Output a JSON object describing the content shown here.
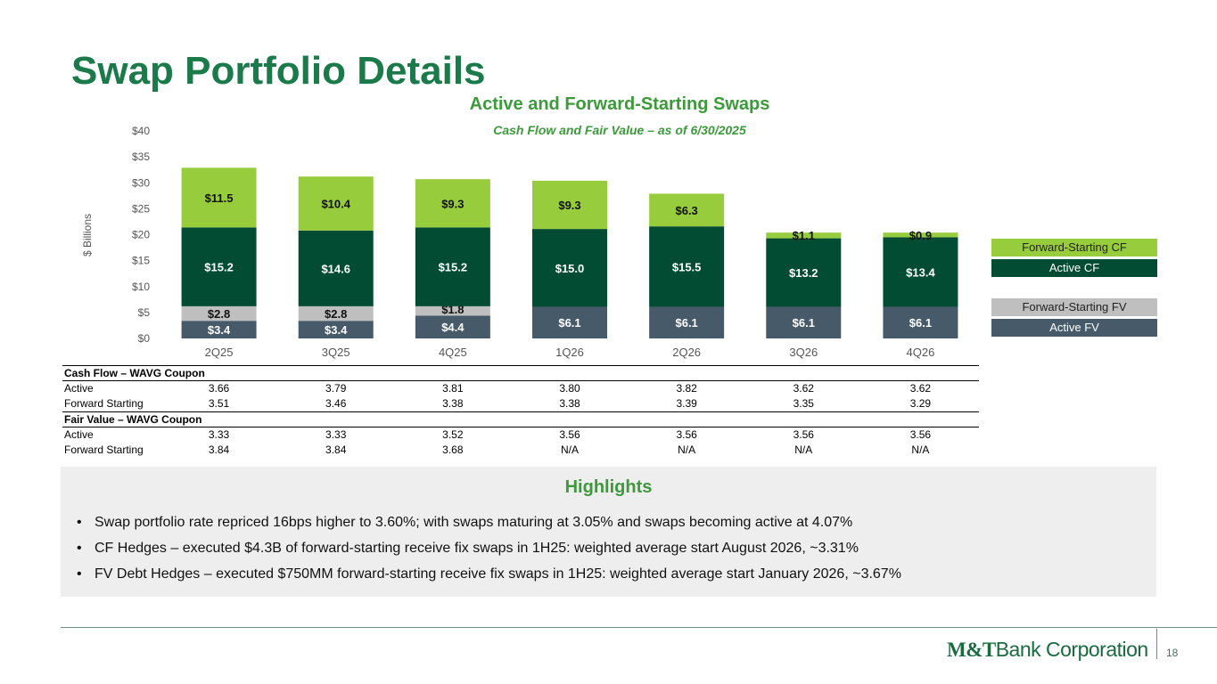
{
  "page": {
    "title": "Swap Portfolio Details",
    "page_number": "18"
  },
  "chart_data": {
    "type": "bar",
    "stacked": true,
    "title": "Active and Forward-Starting Swaps",
    "subtitle": "Cash Flow and Fair Value – as of 6/30/2025",
    "ylabel": "$ Billions",
    "xlabel": "",
    "ylim": [
      0,
      40
    ],
    "yticks": [
      0,
      5,
      10,
      15,
      20,
      25,
      30,
      35,
      40
    ],
    "ytick_labels": [
      "$0",
      "$5",
      "$10",
      "$15",
      "$20",
      "$25",
      "$30",
      "$35",
      "$40"
    ],
    "categories": [
      "2Q25",
      "3Q25",
      "4Q25",
      "1Q26",
      "2Q26",
      "3Q26",
      "4Q26"
    ],
    "series": [
      {
        "name": "Active FV",
        "color": "#475a6a",
        "label_color": "#ffffff",
        "values": [
          3.4,
          3.4,
          4.4,
          6.1,
          6.1,
          6.1,
          6.1
        ],
        "labels": [
          "$3.4",
          "$3.4",
          "$4.4",
          "$6.1",
          "$6.1",
          "$6.1",
          "$6.1"
        ]
      },
      {
        "name": "Forward-Starting FV",
        "color": "#bfbfbf",
        "label_color": "#111111",
        "values": [
          2.8,
          2.8,
          1.8,
          0,
          0,
          0,
          0
        ],
        "labels": [
          "$2.8",
          "$2.8",
          "$1.8",
          "",
          "",
          "",
          ""
        ]
      },
      {
        "name": "Active CF",
        "color": "#034c34",
        "label_color": "#ffffff",
        "values": [
          15.2,
          14.6,
          15.2,
          15.0,
          15.5,
          13.2,
          13.4
        ],
        "labels": [
          "$15.2",
          "$14.6",
          "$15.2",
          "$15.0",
          "$15.5",
          "$13.2",
          "$13.4"
        ]
      },
      {
        "name": "Forward-Starting CF",
        "color": "#97cc3c",
        "label_color": "#111111",
        "values": [
          11.5,
          10.4,
          9.3,
          9.3,
          6.3,
          1.1,
          0.9
        ],
        "labels": [
          "$11.5",
          "$10.4",
          "$9.3",
          "$9.3",
          "$6.3",
          "$1.1",
          "$0.9"
        ]
      }
    ],
    "legend": [
      {
        "name": "Forward-Starting CF",
        "color": "#97cc3c",
        "text_color": "#222222"
      },
      {
        "name": "Active CF",
        "color": "#034c34",
        "text_color": "#ffffff"
      },
      {
        "name": "Forward-Starting FV",
        "color": "#bfbfbf",
        "text_color": "#222222"
      },
      {
        "name": "Active FV",
        "color": "#475a6a",
        "text_color": "#ffffff"
      }
    ],
    "legend_position": "right"
  },
  "coupon_table": {
    "sections": [
      {
        "header": "Cash  Flow – WAVG Coupon",
        "rows": [
          {
            "label": "Active",
            "values": [
              "3.66",
              "3.79",
              "3.81",
              "3.80",
              "3.82",
              "3.62",
              "3.62"
            ]
          },
          {
            "label": "Forward Starting",
            "values": [
              "3.51",
              "3.46",
              "3.38",
              "3.38",
              "3.39",
              "3.35",
              "3.29"
            ]
          }
        ]
      },
      {
        "header": "Fair Value – WAVG Coupon",
        "rows": [
          {
            "label": "Active",
            "values": [
              "3.33",
              "3.33",
              "3.52",
              "3.56",
              "3.56",
              "3.56",
              "3.56"
            ]
          },
          {
            "label": "Forward Starting",
            "values": [
              "3.84",
              "3.84",
              "3.68",
              "N/A",
              "N/A",
              "N/A",
              "N/A"
            ]
          }
        ]
      }
    ]
  },
  "highlights": {
    "title": "Highlights",
    "bullet": "•",
    "items": [
      "Swap portfolio rate repriced 16bps higher to 3.60%; with swaps maturing at 3.05% and swaps becoming active at 4.07%",
      "CF Hedges – executed $4.3B of forward-starting receive fix swaps in 1H25: weighted average start August 2026, ~3.31%",
      "FV Debt Hedges – executed $750MM forward-starting receive fix swaps in 1H25: weighted average start January 2026, ~3.67%"
    ]
  },
  "logo": {
    "brand": "M&T",
    "name": "Bank Corporation"
  },
  "colors": {
    "title_green": "#1a7a4a",
    "accent_green": "#3d9a3b",
    "highlight_bg": "#eeeeee"
  }
}
